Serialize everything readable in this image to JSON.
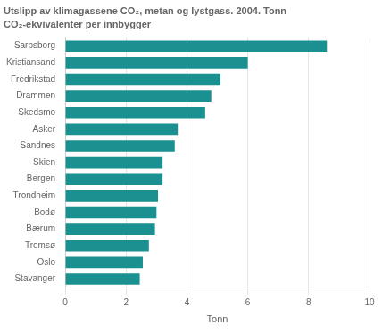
{
  "chart_data": {
    "type": "bar",
    "orientation": "horizontal",
    "title": "Utslipp av klimagassene CO₂, metan og lystgass. 2004. Tonn",
    "subtitle": "CO₂-ekvivalenter per innbygger",
    "xlabel": "Tonn",
    "categories": [
      "Sarpsborg",
      "Kristiansand",
      "Fredrikstad",
      "Drammen",
      "Skedsmo",
      "Asker",
      "Sandnes",
      "Skien",
      "Bergen",
      "Trondheim",
      "Bodø",
      "Bærum",
      "Tromsø",
      "Oslo",
      "Stavanger"
    ],
    "values": [
      8.6,
      6.0,
      5.1,
      4.8,
      4.6,
      3.7,
      3.6,
      3.2,
      3.2,
      3.05,
      3.0,
      2.95,
      2.75,
      2.55,
      2.45
    ],
    "color": "#1a9090",
    "xlim": [
      0,
      10
    ],
    "xticks": [
      0,
      2,
      4,
      6,
      8,
      10
    ],
    "grid": true
  }
}
